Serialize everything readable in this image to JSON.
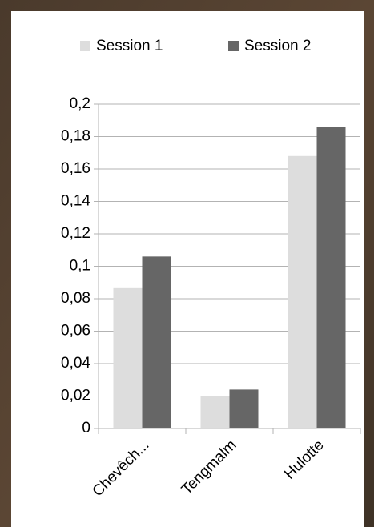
{
  "chart_data": {
    "type": "bar",
    "categories": [
      "Chevêch...",
      "Tengmalm",
      "Hulotte"
    ],
    "series": [
      {
        "name": "Session 1",
        "color": "#dddddd",
        "values": [
          0.087,
          0.02,
          0.168
        ]
      },
      {
        "name": "Session 2",
        "color": "#666666",
        "values": [
          0.106,
          0.024,
          0.186
        ]
      }
    ],
    "ylim": [
      0,
      0.2
    ],
    "yticks": [
      0,
      {
        "value": 0.02,
        "label": "0,02"
      },
      {
        "value": 0.04,
        "label": "0,04"
      },
      {
        "value": 0.06,
        "label": "0,06"
      },
      {
        "value": 0.08,
        "label": "0,08"
      },
      {
        "value": 0.1,
        "label": "0,1"
      },
      {
        "value": 0.12,
        "label": "0,12"
      },
      {
        "value": 0.14,
        "label": "0,14"
      },
      {
        "value": 0.16,
        "label": "0,16"
      },
      {
        "value": 0.18,
        "label": "0,18"
      },
      {
        "value": 0.2,
        "label": "0,2"
      }
    ],
    "grid": true,
    "legend": "top"
  }
}
